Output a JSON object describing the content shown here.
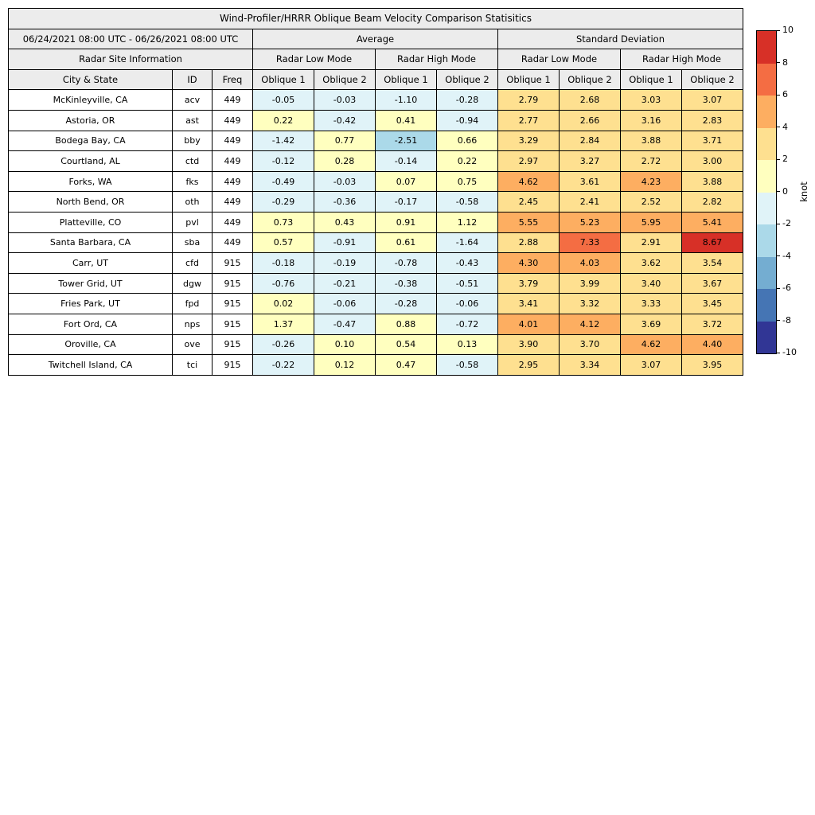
{
  "chart_data": {
    "type": "table",
    "title": "Wind-Profiler/HRRR Oblique Beam Velocity Comparison Statisitics",
    "date_range": "06/24/2021 08:00 UTC - 06/26/2021 08:00 UTC",
    "column_groups": {
      "average": "Average",
      "std": "Standard Deviation",
      "site_info": "Radar Site Information",
      "low_mode": "Radar Low Mode",
      "high_mode": "Radar High Mode"
    },
    "columns": {
      "city": "City & State",
      "id": "ID",
      "freq": "Freq",
      "oblique1": "Oblique 1",
      "oblique2": "Oblique 2"
    },
    "rows": [
      {
        "city": "McKinleyville, CA",
        "id": "acv",
        "freq": 449,
        "values": [
          -0.05,
          -0.03,
          -1.1,
          -0.28,
          2.79,
          2.68,
          3.03,
          3.07
        ]
      },
      {
        "city": "Astoria, OR",
        "id": "ast",
        "freq": 449,
        "values": [
          0.22,
          -0.42,
          0.41,
          -0.94,
          2.77,
          2.66,
          3.16,
          2.83
        ]
      },
      {
        "city": "Bodega Bay, CA",
        "id": "bby",
        "freq": 449,
        "values": [
          -1.42,
          0.77,
          -2.51,
          0.66,
          3.29,
          2.84,
          3.88,
          3.71
        ]
      },
      {
        "city": "Courtland, AL",
        "id": "ctd",
        "freq": 449,
        "values": [
          -0.12,
          0.28,
          -0.14,
          0.22,
          2.97,
          3.27,
          2.72,
          3.0
        ]
      },
      {
        "city": "Forks, WA",
        "id": "fks",
        "freq": 449,
        "values": [
          -0.49,
          -0.03,
          0.07,
          0.75,
          4.62,
          3.61,
          4.23,
          3.88
        ]
      },
      {
        "city": "North Bend, OR",
        "id": "oth",
        "freq": 449,
        "values": [
          -0.29,
          -0.36,
          -0.17,
          -0.58,
          2.45,
          2.41,
          2.52,
          2.82
        ]
      },
      {
        "city": "Platteville, CO",
        "id": "pvl",
        "freq": 449,
        "values": [
          0.73,
          0.43,
          0.91,
          1.12,
          5.55,
          5.23,
          5.95,
          5.41
        ]
      },
      {
        "city": "Santa Barbara, CA",
        "id": "sba",
        "freq": 449,
        "values": [
          0.57,
          -0.91,
          0.61,
          -1.64,
          2.88,
          7.33,
          2.91,
          8.67
        ]
      },
      {
        "city": "Carr, UT",
        "id": "cfd",
        "freq": 915,
        "values": [
          -0.18,
          -0.19,
          -0.78,
          -0.43,
          4.3,
          4.03,
          3.62,
          3.54
        ]
      },
      {
        "city": "Tower Grid, UT",
        "id": "dgw",
        "freq": 915,
        "values": [
          -0.76,
          -0.21,
          -0.38,
          -0.51,
          3.79,
          3.99,
          3.4,
          3.67
        ]
      },
      {
        "city": "Fries Park, UT",
        "id": "fpd",
        "freq": 915,
        "values": [
          0.02,
          -0.06,
          -0.28,
          -0.06,
          3.41,
          3.32,
          3.33,
          3.45
        ]
      },
      {
        "city": "Fort Ord, CA",
        "id": "nps",
        "freq": 915,
        "values": [
          1.37,
          -0.47,
          0.88,
          -0.72,
          4.01,
          4.12,
          3.69,
          3.72
        ]
      },
      {
        "city": "Oroville, CA",
        "id": "ove",
        "freq": 915,
        "values": [
          -0.26,
          0.1,
          0.54,
          0.13,
          3.9,
          3.7,
          4.62,
          4.4
        ]
      },
      {
        "city": "Twitchell Island, CA",
        "id": "tci",
        "freq": 915,
        "values": [
          -0.22,
          0.12,
          0.47,
          -0.58,
          2.95,
          3.34,
          3.07,
          3.95
        ]
      }
    ],
    "colorbar": {
      "unit": "knot",
      "min": -10,
      "max": 10,
      "bin_size": 2,
      "ticks": [
        10,
        8,
        6,
        4,
        2,
        0,
        -2,
        -4,
        -6,
        -8,
        -10
      ],
      "bin_colors": [
        "#313695",
        "#4575b4",
        "#74add1",
        "#abd9e9",
        "#e0f3f8",
        "#ffffbf",
        "#fee090",
        "#fdae61",
        "#f46d43",
        "#d73027"
      ]
    }
  }
}
